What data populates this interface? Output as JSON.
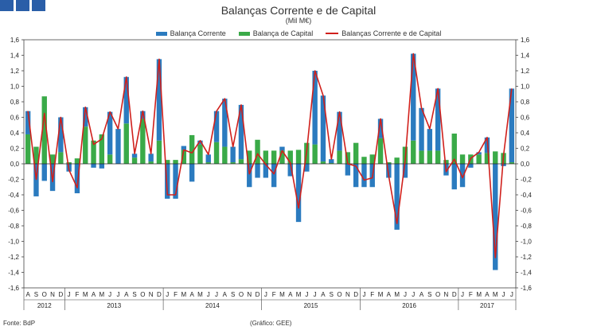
{
  "chart_data": {
    "type": "bar",
    "title": "Balanças Corrente e de Capital",
    "subtitle": "(Mil M€)",
    "ylim": [
      -1.6,
      1.6
    ],
    "yticks": [
      "1,6",
      "1,4",
      "1,2",
      "1,0",
      "0,8",
      "0,6",
      "0,4",
      "0,2",
      "0,0",
      "-0,2",
      "-0,4",
      "-0,6",
      "-0,8",
      "-1,0",
      "-1,2",
      "-1,4",
      "-1,6"
    ],
    "months": [
      "A",
      "S",
      "O",
      "N",
      "D",
      "J",
      "F",
      "M",
      "A",
      "M",
      "J",
      "J",
      "A",
      "S",
      "O",
      "N",
      "D",
      "J",
      "F",
      "M",
      "A",
      "M",
      "J",
      "J",
      "A",
      "S",
      "O",
      "N",
      "D",
      "J",
      "F",
      "M",
      "A",
      "M",
      "J",
      "J",
      "A",
      "S",
      "O",
      "N",
      "D",
      "J",
      "F",
      "M",
      "A",
      "M",
      "J",
      "J",
      "A",
      "S",
      "O",
      "N",
      "D",
      "J",
      "F",
      "M",
      "A",
      "M",
      "J",
      "J"
    ],
    "years": [
      {
        "label": "2012",
        "start": 0,
        "end": 4
      },
      {
        "label": "2013",
        "start": 5,
        "end": 16
      },
      {
        "label": "2014",
        "start": 17,
        "end": 28
      },
      {
        "label": "2015",
        "start": 29,
        "end": 40
      },
      {
        "label": "2016",
        "start": 41,
        "end": 52
      },
      {
        "label": "2017",
        "start": 53,
        "end": 59
      }
    ],
    "series": [
      {
        "name": "Balança Corrente",
        "color": "#2b7bbf",
        "values": [
          0.3,
          -0.42,
          -0.22,
          -0.35,
          0.45,
          -0.1,
          -0.38,
          0.25,
          -0.05,
          -0.06,
          0.55,
          0.45,
          0.6,
          0.05,
          0.1,
          0.1,
          1.05,
          -0.45,
          -0.45,
          0.05,
          -0.23,
          0.05,
          0.1,
          0.4,
          0.62,
          0.2,
          0.7,
          -0.3,
          -0.18,
          -0.18,
          -0.3,
          0.05,
          -0.16,
          -0.75,
          -0.1,
          0.95,
          0.85,
          0.05,
          0.5,
          -0.15,
          -0.3,
          -0.3,
          -0.3,
          0.25,
          -0.18,
          -0.85,
          -0.18,
          1.12,
          0.55,
          0.28,
          0.8,
          -0.15,
          -0.33,
          -0.3,
          -0.05,
          0.03,
          0.2,
          -1.37,
          -0.03,
          0.95
        ]
      },
      {
        "name": "Balança de Capital",
        "color": "#3aaa48",
        "values": [
          0.38,
          0.22,
          0.87,
          0.12,
          0.15,
          0.02,
          0.07,
          0.48,
          0.3,
          0.38,
          0.12,
          0.0,
          0.52,
          0.08,
          0.58,
          0.03,
          0.3,
          0.05,
          0.05,
          0.18,
          0.37,
          0.25,
          0.02,
          0.28,
          0.22,
          0.02,
          0.06,
          0.17,
          0.31,
          0.17,
          0.17,
          0.17,
          0.17,
          0.18,
          0.27,
          0.25,
          0.03,
          0.01,
          0.17,
          0.15,
          0.27,
          0.09,
          0.12,
          0.33,
          0.02,
          0.08,
          0.22,
          0.3,
          0.17,
          0.17,
          0.17,
          0.05,
          0.39,
          0.12,
          0.12,
          0.12,
          0.14,
          0.16,
          0.14,
          0.02
        ]
      },
      {
        "name": "Balanças Corrente e de Capital",
        "color": "#d0201c",
        "values": [
          0.68,
          -0.2,
          0.65,
          -0.23,
          0.6,
          -0.08,
          -0.31,
          0.73,
          0.25,
          0.32,
          0.67,
          0.45,
          1.12,
          0.13,
          0.68,
          0.13,
          1.35,
          -0.4,
          -0.4,
          0.18,
          0.14,
          0.3,
          0.12,
          0.68,
          0.84,
          0.22,
          0.76,
          -0.13,
          0.13,
          -0.01,
          -0.13,
          0.17,
          0.01,
          -0.57,
          0.17,
          1.2,
          0.88,
          0.06,
          0.67,
          0.0,
          -0.03,
          -0.21,
          -0.18,
          0.58,
          -0.16,
          -0.77,
          0.04,
          1.42,
          0.72,
          0.45,
          0.97,
          -0.1,
          0.06,
          -0.18,
          0.07,
          0.15,
          0.34,
          -1.21,
          0.11,
          0.97
        ]
      }
    ],
    "legend_position": "top"
  },
  "footer": {
    "source": "Fonte: BdP",
    "credit": "(Gráfico: GEE)"
  }
}
